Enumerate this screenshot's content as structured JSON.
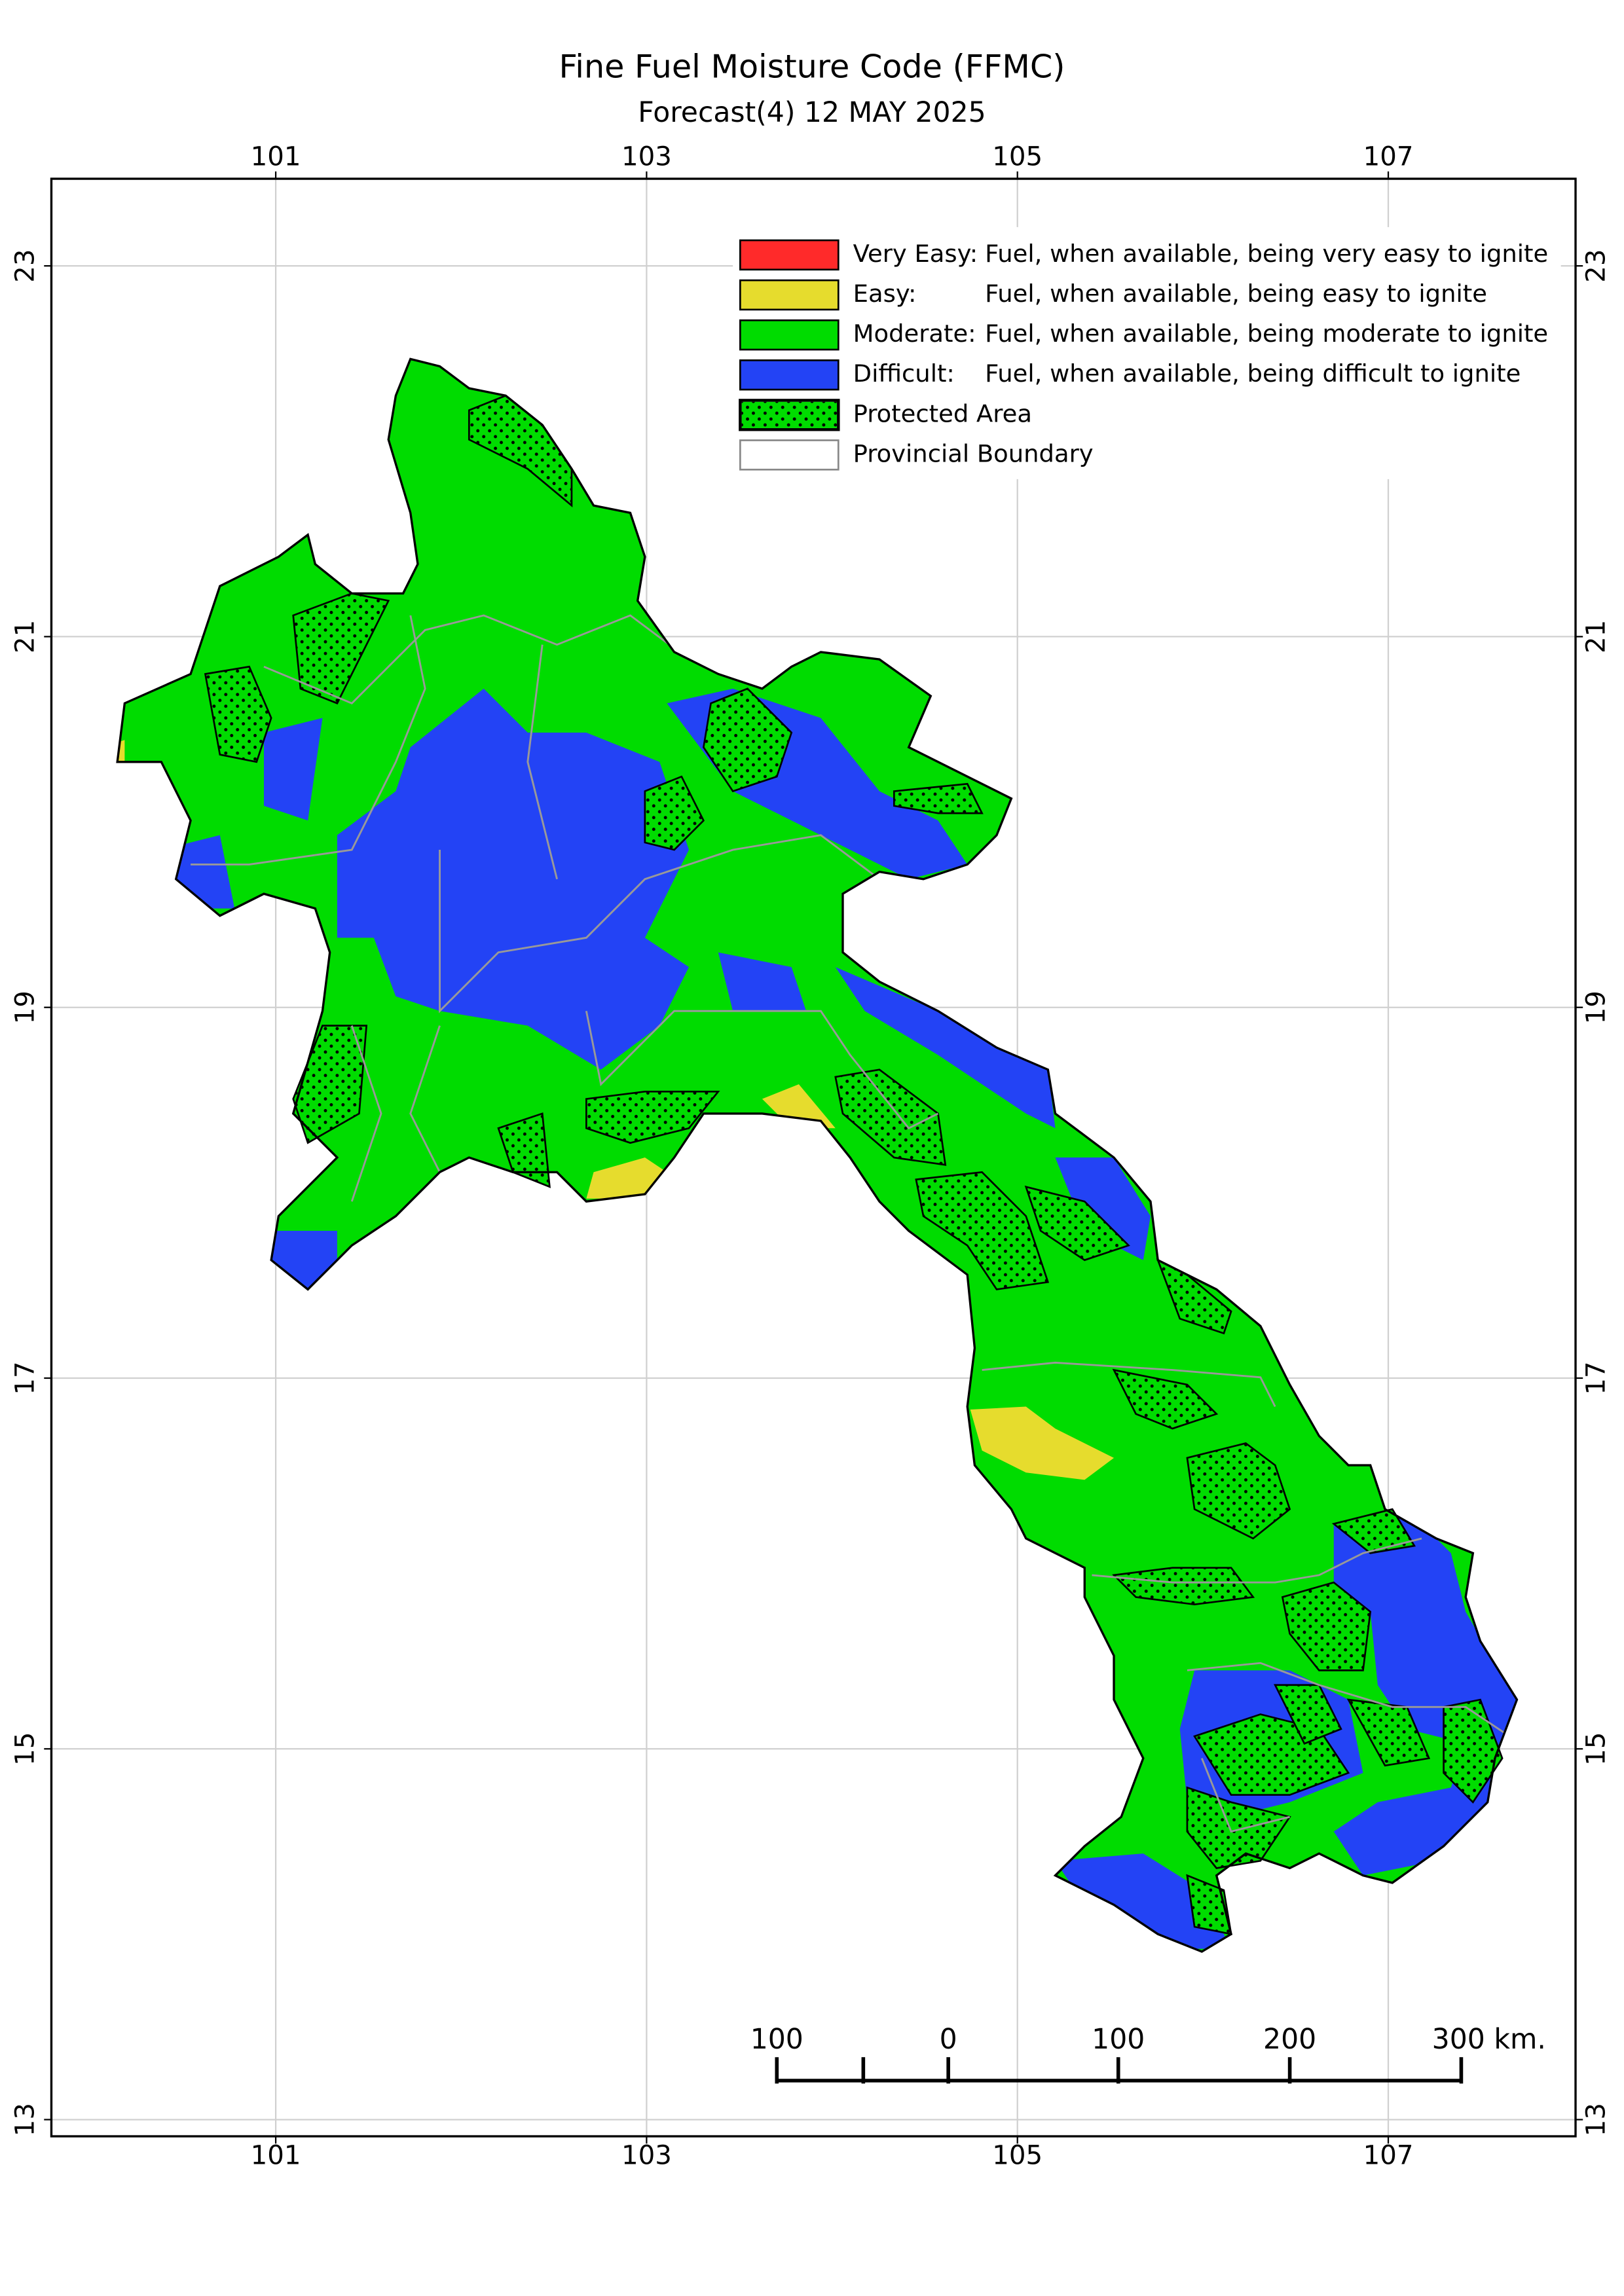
{
  "map": {
    "title": "Fine Fuel Moisture Code (FFMC)",
    "subtitle": "Forecast(4) 12 MAY 2025",
    "xlim": [
      99.79,
      108.01
    ],
    "ylim": [
      12.91,
      23.47
    ],
    "xticks": [
      101,
      103,
      105,
      107
    ],
    "yticks": [
      13,
      15,
      17,
      19,
      21,
      23
    ],
    "grid": true,
    "legend": [
      {
        "label": "Very Easy:",
        "description": "Fuel, when available, being very easy to ignite",
        "color": "#ff2a2a"
      },
      {
        "label": "Easy:",
        "description": "Fuel, when available, being easy to ignite",
        "color": "#e6dc2d"
      },
      {
        "label": "Moderate:",
        "description": "Fuel, when available, being moderate to ignite",
        "color": "#00dc00"
      },
      {
        "label": "Difficult:",
        "description": "Fuel, when available, being difficult to ignite",
        "color": "#2343f5"
      },
      {
        "label": "Protected Area"
      },
      {
        "label": "Provincial Boundary"
      }
    ],
    "scale_bar": {
      "labels": [
        "100",
        "0",
        "100",
        "200",
        "300 km."
      ]
    }
  }
}
